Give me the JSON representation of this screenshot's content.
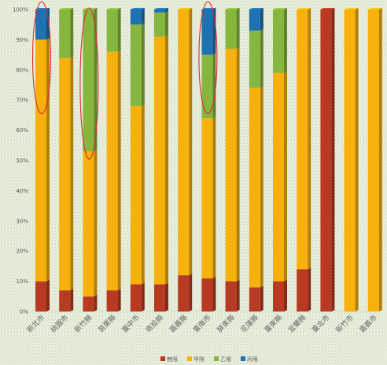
{
  "chart_data": {
    "type": "bar",
    "stacked": true,
    "percent": true,
    "title": "",
    "xlabel": "",
    "ylabel": "",
    "ylim": [
      0,
      100
    ],
    "y_ticks": [
      "0%",
      "10%",
      "20%",
      "30%",
      "40%",
      "50%",
      "60%",
      "70%",
      "80%",
      "90%",
      "100%"
    ],
    "grid": false,
    "legend_position": "bottom",
    "categories": [
      "新北市",
      "桃園市",
      "新竹縣",
      "苗栗縣",
      "臺中市",
      "南投縣",
      "嘉義縣",
      "臺南市",
      "屏東縣",
      "花蓮縣",
      "臺東縣",
      "宜蘭縣",
      "臺北市",
      "新竹市",
      "嘉義市"
    ],
    "series": [
      {
        "name": "無限",
        "color": "#b83a22",
        "values": [
          10,
          7,
          5,
          7,
          9,
          9,
          12,
          11,
          10,
          8,
          10,
          14,
          100,
          0,
          0
        ]
      },
      {
        "name": "甲限",
        "color": "#f6b10c",
        "values": [
          80,
          77,
          48,
          79,
          59,
          82,
          88,
          53,
          77,
          66,
          69,
          86,
          0,
          100,
          100
        ]
      },
      {
        "name": "乙限",
        "color": "#86b63d",
        "values": [
          0,
          16,
          47,
          14,
          27,
          8,
          0,
          21,
          13,
          19,
          21,
          0,
          0,
          0,
          0
        ]
      },
      {
        "name": "丙限",
        "color": "#1f72b2",
        "values": [
          10,
          0,
          0,
          0,
          5,
          1,
          0,
          15,
          0,
          7,
          0,
          0,
          0,
          0,
          0
        ]
      }
    ],
    "highlights": [
      {
        "category": "新北市",
        "from": 66,
        "to": 102
      },
      {
        "category": "新竹縣",
        "from": 51,
        "to": 100
      },
      {
        "category": "臺南市",
        "from": 66,
        "to": 102
      }
    ]
  }
}
